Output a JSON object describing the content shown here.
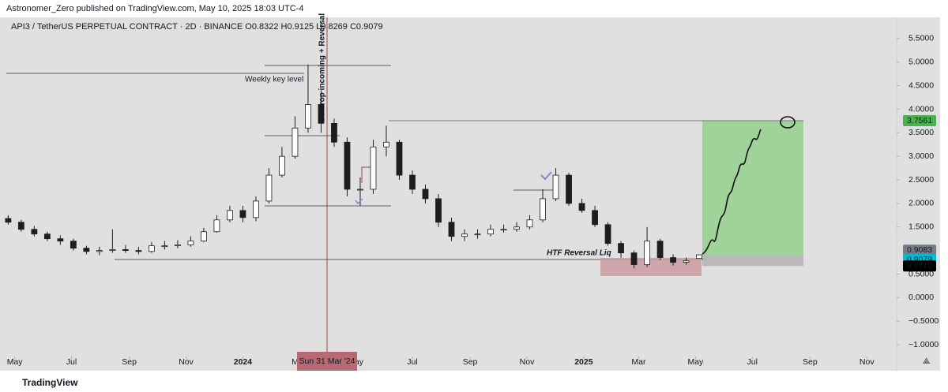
{
  "header": {
    "publisher": "Astronomer_Zero published on TradingView.com, May 10, 2025 18:03 UTC-4",
    "footer": "TradingView"
  },
  "chart_data": {
    "type": "candlestick",
    "legend": "API3 / TetherUS PERPETUAL CONTRACT · 2D · BINANCE  O0.8322  H0.9125  L0.8269  C0.9079",
    "x": [
      "2023-04-24",
      "2023-05-08",
      "2023-05-22",
      "2023-06-05",
      "2023-06-19",
      "2023-07-03",
      "2023-07-17",
      "2023-07-31",
      "2023-08-14",
      "2023-08-28",
      "2023-09-11",
      "2023-09-25",
      "2023-10-09",
      "2023-10-23",
      "2023-11-06",
      "2023-11-20",
      "2023-12-04",
      "2023-12-18",
      "2024-01-01",
      "2024-01-15",
      "2024-01-29",
      "2024-02-12",
      "2024-02-26",
      "2024-03-11",
      "2024-03-25",
      "2024-04-08",
      "2024-04-22",
      "2024-05-06",
      "2024-05-20",
      "2024-06-03",
      "2024-06-17",
      "2024-07-01",
      "2024-07-15",
      "2024-07-29",
      "2024-08-12",
      "2024-08-26",
      "2024-09-09",
      "2024-09-23",
      "2024-10-07",
      "2024-10-21",
      "2024-11-04",
      "2024-11-18",
      "2024-12-02",
      "2024-12-16",
      "2024-12-30",
      "2025-01-13",
      "2025-01-27",
      "2025-02-10",
      "2025-02-24",
      "2025-03-10",
      "2025-03-24",
      "2025-04-07",
      "2025-04-21",
      "2025-05-05"
    ],
    "open": [
      1.68,
      1.6,
      1.45,
      1.35,
      1.25,
      1.2,
      1.05,
      0.98,
      1.0,
      1.02,
      1.0,
      0.98,
      1.1,
      1.1,
      1.12,
      1.2,
      1.4,
      1.65,
      1.85,
      1.7,
      2.05,
      2.6,
      3.0,
      3.6,
      4.1,
      3.7,
      3.3,
      2.3,
      2.3,
      3.2,
      3.3,
      2.6,
      2.3,
      2.1,
      1.6,
      1.3,
      1.35,
      1.35,
      1.45,
      1.45,
      1.5,
      1.65,
      2.1,
      2.6,
      2.0,
      1.85,
      1.55,
      1.15,
      0.95,
      0.7,
      1.2,
      0.85,
      0.75,
      0.8322
    ],
    "high": [
      1.75,
      1.65,
      1.52,
      1.4,
      1.32,
      1.25,
      1.1,
      1.08,
      1.45,
      1.12,
      1.08,
      1.18,
      1.2,
      1.22,
      1.3,
      1.48,
      1.75,
      1.95,
      1.95,
      2.15,
      2.75,
      3.2,
      3.85,
      4.95,
      4.4,
      3.8,
      3.4,
      2.55,
      3.35,
      3.65,
      3.35,
      2.7,
      2.4,
      2.2,
      1.7,
      1.45,
      1.45,
      1.55,
      1.55,
      1.6,
      1.75,
      2.3,
      2.75,
      2.65,
      2.1,
      1.95,
      1.6,
      1.2,
      1.0,
      1.5,
      1.25,
      0.92,
      0.85,
      0.9125
    ],
    "low": [
      1.55,
      1.4,
      1.3,
      1.2,
      1.12,
      1.0,
      0.92,
      0.9,
      0.95,
      0.95,
      0.92,
      0.95,
      1.02,
      1.05,
      1.08,
      1.18,
      1.38,
      1.6,
      1.6,
      1.62,
      2.0,
      2.55,
      2.95,
      3.5,
      3.5,
      3.2,
      2.15,
      1.95,
      2.2,
      3.0,
      2.5,
      2.2,
      2.0,
      1.5,
      1.2,
      1.2,
      1.25,
      1.3,
      1.38,
      1.4,
      1.45,
      1.6,
      2.05,
      1.95,
      1.8,
      1.5,
      1.1,
      0.85,
      0.62,
      0.65,
      0.8,
      0.68,
      0.7,
      0.8269
    ],
    "close": [
      1.6,
      1.45,
      1.35,
      1.25,
      1.2,
      1.05,
      0.98,
      1.0,
      1.02,
      1.0,
      0.98,
      1.1,
      1.1,
      1.12,
      1.2,
      1.4,
      1.65,
      1.85,
      1.7,
      2.05,
      2.6,
      3.0,
      3.6,
      4.1,
      3.7,
      3.3,
      2.3,
      2.3,
      3.2,
      3.3,
      2.6,
      2.3,
      2.1,
      1.6,
      1.3,
      1.35,
      1.35,
      1.45,
      1.45,
      1.5,
      1.65,
      2.1,
      2.6,
      2.0,
      1.85,
      1.55,
      1.15,
      0.95,
      0.7,
      1.2,
      0.85,
      0.75,
      0.78,
      0.9079
    ],
    "up_color": "#ffffff",
    "down_color": "#1e1e1e",
    "wick_color": "#1e1e1e",
    "xlim": [
      "2023-04-22",
      "2025-12-03"
    ],
    "xticks": [
      {
        "value": "2023-05-01",
        "label": "May"
      },
      {
        "value": "2023-07-01",
        "label": "Jul"
      },
      {
        "value": "2023-09-01",
        "label": "Sep"
      },
      {
        "value": "2023-11-01",
        "label": "Nov"
      },
      {
        "value": "2024-01-01",
        "label": "2024"
      },
      {
        "value": "2024-03-01",
        "label": "Mar"
      },
      {
        "value": "2024-05-01",
        "label": "May"
      },
      {
        "value": "2024-07-01",
        "label": "Jul"
      },
      {
        "value": "2024-09-01",
        "label": "Sep"
      },
      {
        "value": "2024-11-01",
        "label": "Nov"
      },
      {
        "value": "2025-01-01",
        "label": "2025"
      },
      {
        "value": "2025-03-01",
        "label": "Mar"
      },
      {
        "value": "2025-05-01",
        "label": "May"
      },
      {
        "value": "2025-07-01",
        "label": "Jul"
      },
      {
        "value": "2025-09-01",
        "label": "Sep"
      },
      {
        "value": "2025-11-01",
        "label": "Nov"
      }
    ],
    "ylim": [
      -1.15,
      5.85
    ],
    "yticks": [
      {
        "value": 5.5,
        "label": "5.5000"
      },
      {
        "value": 5,
        "label": "5.0000"
      },
      {
        "value": 4.5,
        "label": "4.5000"
      },
      {
        "value": 4,
        "label": "4.0000"
      },
      {
        "value": 3.5,
        "label": "3.5000"
      },
      {
        "value": 3,
        "label": "3.0000"
      },
      {
        "value": 2.5,
        "label": "2.5000"
      },
      {
        "value": 2,
        "label": "2.0000"
      },
      {
        "value": 1.5,
        "label": "1.5000"
      },
      {
        "value": 0.5,
        "label": "0.5000"
      },
      {
        "value": 0,
        "label": "0.0000"
      },
      {
        "value": -0.5,
        "label": "−0.5000"
      },
      {
        "value": -1,
        "label": "−1.0000"
      }
    ],
    "price_labels": [
      3.7561,
      0.9083,
      0.9079,
      {
        "value": 0.671,
        "label": "0.6710"
      }
    ],
    "price_label_colors": [
      "#4caf50",
      "#787b86",
      "#00bcd4",
      "#000000"
    ],
    "crosshair_label": "Sun 31 Mar '24",
    "annotations": {
      "key_level": "Weekly key level",
      "liq": "HTF Reversal Liq",
      "vertical": "DJ drop incoming + Reversal"
    }
  }
}
